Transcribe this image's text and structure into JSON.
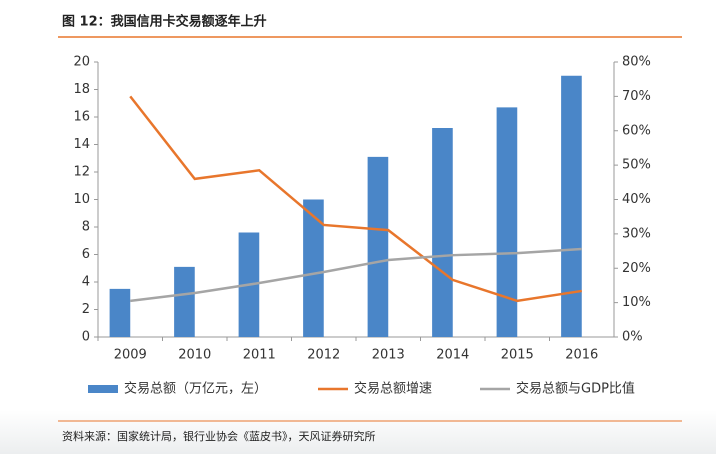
{
  "title": "图 12：我国信用卡交易额逐年上升",
  "source": "资料来源：国家统计局，银行业协会《蓝皮书》，天风证券研究所",
  "chart_data": {
    "type": "bar",
    "categories": [
      "2009",
      "2010",
      "2011",
      "2012",
      "2013",
      "2014",
      "2015",
      "2016"
    ],
    "series": [
      {
        "name": "交易总额（万亿元，左）",
        "type": "bar",
        "color": "#4a86c8",
        "values": [
          3.5,
          5.1,
          7.6,
          10.0,
          13.1,
          15.2,
          16.7,
          19.0
        ]
      },
      {
        "name": "交易总额增速",
        "type": "line",
        "axis": "y2",
        "color": "#e8762c",
        "values": [
          70,
          46,
          48.5,
          32.6,
          31.1,
          16.6,
          10.5,
          13.4
        ]
      },
      {
        "name": "交易总额与GDP比值",
        "type": "line",
        "axis": "y2",
        "color": "#a5a5a5",
        "values": [
          10.5,
          12.8,
          15.7,
          18.9,
          22.4,
          23.8,
          24.4,
          25.6
        ]
      }
    ],
    "ylim": [
      0,
      20
    ],
    "yticks": [
      0,
      2,
      4,
      6,
      8,
      10,
      12,
      14,
      16,
      18,
      20
    ],
    "y2lim": [
      0,
      80
    ],
    "y2ticks": [
      {
        "value": 0,
        "label": "0%"
      },
      {
        "value": 10,
        "label": "10%"
      },
      {
        "value": 20,
        "label": "20%"
      },
      {
        "value": 30,
        "label": "30%"
      },
      {
        "value": 40,
        "label": "40%"
      },
      {
        "value": 50,
        "label": "50%"
      },
      {
        "value": 60,
        "label": "60%"
      },
      {
        "value": 70,
        "label": "70%"
      },
      {
        "value": 80,
        "label": "80%"
      }
    ],
    "legend": "bottom"
  }
}
